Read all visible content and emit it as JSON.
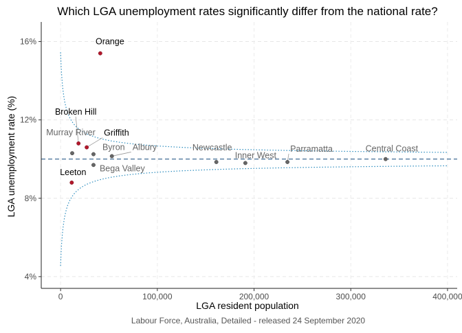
{
  "chart_data": {
    "type": "scatter",
    "title": "Which LGA unemployment rates significantly differ from the national rate?",
    "caption": "Labour Force, Australia, Detailed - released 24 September 2020",
    "xlabel": "LGA resident population",
    "ylabel": "LGA unemployment rate (%)",
    "xlim": [
      -20000,
      410000
    ],
    "ylim": [
      3.4,
      17.0
    ],
    "x_ticks": [
      0,
      100000,
      200000,
      300000,
      400000
    ],
    "x_tick_labels": [
      "0",
      "100,000",
      "200,000",
      "300,000",
      "400,000"
    ],
    "y_ticks": [
      4,
      8,
      12,
      16
    ],
    "y_tick_labels": [
      "4%",
      "8%",
      "12%",
      "16%"
    ],
    "national_rate": 10.0,
    "grid": true,
    "colors": {
      "significant": "#b2182b",
      "not_significant": "#666666",
      "national_line": "#2c5d8a",
      "band": "#2b8cbe",
      "label_significant": "#000000",
      "label_not_significant": "#666666"
    },
    "points": [
      {
        "name": "Orange",
        "x": 41000,
        "y": 15.4,
        "significant": true
      },
      {
        "name": "Broken Hill",
        "x": 18500,
        "y": 10.8,
        "significant": true
      },
      {
        "name": "Griffith",
        "x": 27000,
        "y": 10.6,
        "significant": true
      },
      {
        "name": "Leeton",
        "x": 11500,
        "y": 8.8,
        "significant": true
      },
      {
        "name": "Murray River",
        "x": 12000,
        "y": 10.3,
        "significant": false
      },
      {
        "name": "Byron",
        "x": 34000,
        "y": 10.25,
        "significant": false
      },
      {
        "name": "Albury",
        "x": 53000,
        "y": 10.15,
        "significant": false
      },
      {
        "name": "Bega Valley",
        "x": 34000,
        "y": 9.7,
        "significant": false
      },
      {
        "name": "Newcastle",
        "x": 161000,
        "y": 9.85,
        "significant": false
      },
      {
        "name": "Inner West",
        "x": 191000,
        "y": 9.8,
        "significant": false
      },
      {
        "name": "Parramatta",
        "x": 234500,
        "y": 9.85,
        "significant": false
      },
      {
        "name": "Central Coast",
        "x": 336000,
        "y": 10.0,
        "significant": false
      }
    ]
  }
}
